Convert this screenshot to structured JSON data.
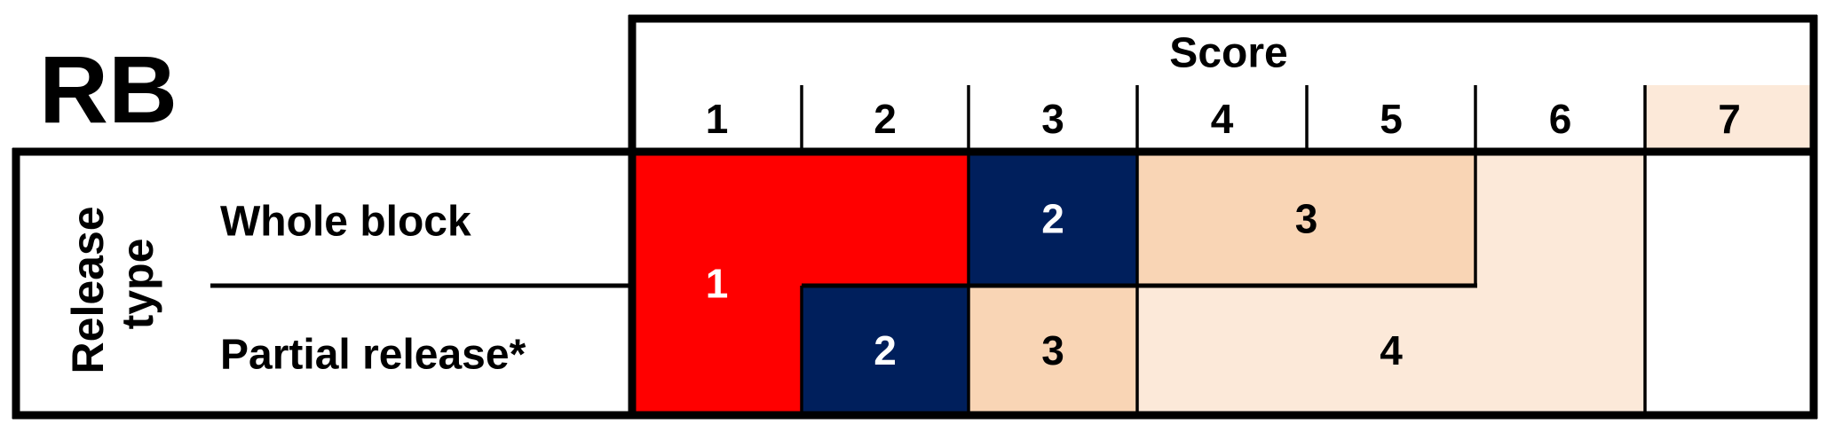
{
  "panel_label": "RB",
  "header": {
    "title": "Score",
    "scores": [
      "1",
      "2",
      "3",
      "4",
      "5",
      "6",
      "7"
    ],
    "highlighted_score": {
      "score": "7",
      "color": "#fce9d9"
    }
  },
  "row_group_label": [
    "Release",
    "type"
  ],
  "rows": [
    {
      "key": "whole",
      "label": "Whole block"
    },
    {
      "key": "partial",
      "label": "Partial release*"
    }
  ],
  "regions": [
    {
      "label": "1",
      "color": "#ff0000",
      "text_color": "#ffffff",
      "cells": [
        {
          "row": "whole",
          "scores": [
            1,
            2
          ]
        },
        {
          "row": "partial",
          "scores": [
            1
          ]
        }
      ]
    },
    {
      "label": "2",
      "color": "#001f5c",
      "text_color": "#ffffff",
      "cells": [
        {
          "row": "whole",
          "scores": [
            3
          ]
        }
      ]
    },
    {
      "label": "3",
      "color": "#f9d5b5",
      "text_color": "#000000",
      "cells": [
        {
          "row": "whole",
          "scores": [
            4,
            5
          ]
        }
      ]
    },
    {
      "label": "",
      "color": "#fce9d9",
      "text_color": "#000000",
      "cells": [
        {
          "row": "whole",
          "scores": [
            6
          ]
        }
      ]
    },
    {
      "label": "2",
      "color": "#001f5c",
      "text_color": "#ffffff",
      "cells": [
        {
          "row": "partial",
          "scores": [
            2
          ]
        }
      ]
    },
    {
      "label": "3",
      "color": "#f9d5b5",
      "text_color": "#000000",
      "cells": [
        {
          "row": "partial",
          "scores": [
            3
          ]
        }
      ]
    },
    {
      "label": "4",
      "color": "#fce9d9",
      "text_color": "#000000",
      "cells": [
        {
          "row": "partial",
          "scores": [
            4,
            5,
            6
          ]
        }
      ]
    }
  ]
}
